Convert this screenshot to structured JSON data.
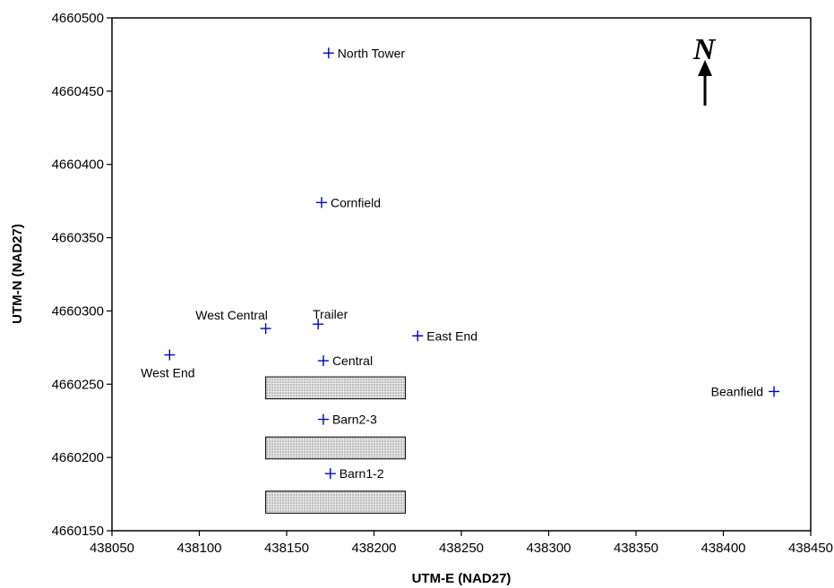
{
  "chart_data": {
    "type": "scatter",
    "title": "",
    "xlabel": "UTM-E (NAD27)",
    "ylabel": "UTM-N (NAD27)",
    "xlim": [
      438050,
      438450
    ],
    "ylim": [
      4660150,
      4660500
    ],
    "xticks": [
      438050,
      438100,
      438150,
      438200,
      438250,
      438300,
      438350,
      438400,
      438450
    ],
    "yticks": [
      4660150,
      4660200,
      4660250,
      4660300,
      4660350,
      4660400,
      4660450,
      4660500
    ],
    "grid": false,
    "marker": "+",
    "marker_color": "#0000cc",
    "points": [
      {
        "label": "North Tower",
        "x": 438174,
        "y": 4660476,
        "label_pos": "right"
      },
      {
        "label": "Cornfield",
        "x": 438170,
        "y": 4660374,
        "label_pos": "right"
      },
      {
        "label": "West Central",
        "x": 438138,
        "y": 4660288,
        "label_pos": "upper-left"
      },
      {
        "label": "Trailer",
        "x": 438168,
        "y": 4660291,
        "label_pos": "upper-right"
      },
      {
        "label": "East End",
        "x": 438225,
        "y": 4660283,
        "label_pos": "right"
      },
      {
        "label": "West End",
        "x": 438083,
        "y": 4660270,
        "label_pos": "below"
      },
      {
        "label": "Central",
        "x": 438171,
        "y": 4660266,
        "label_pos": "right"
      },
      {
        "label": "Beanfield",
        "x": 438429,
        "y": 4660245,
        "label_pos": "left"
      },
      {
        "label": "Barn2-3",
        "x": 438171,
        "y": 4660226,
        "label_pos": "right"
      },
      {
        "label": "Barn1-2",
        "x": 438175,
        "y": 4660189,
        "label_pos": "right"
      }
    ],
    "barns": [
      {
        "x0": 438138,
        "x1": 438218,
        "y0": 4660240,
        "y1": 4660255
      },
      {
        "x0": 438138,
        "x1": 438218,
        "y0": 4660199,
        "y1": 4660214
      },
      {
        "x0": 438138,
        "x1": 438218,
        "y0": 4660162,
        "y1": 4660177
      }
    ],
    "barn_fill": "#d9d9d9",
    "north_arrow": {
      "letter": "N",
      "position": "top-right"
    }
  }
}
